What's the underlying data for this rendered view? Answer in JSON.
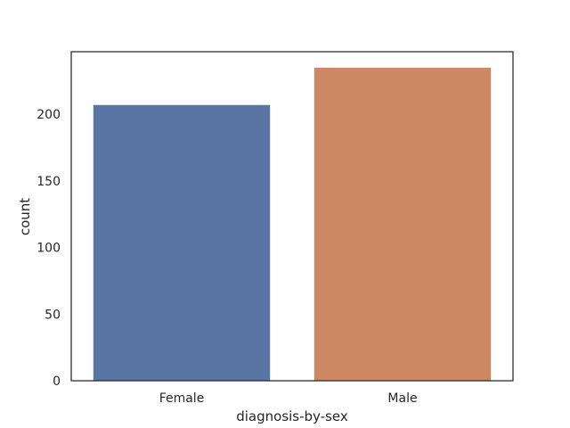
{
  "chart_data": {
    "type": "bar",
    "title": "",
    "xlabel": "diagnosis-by-sex",
    "ylabel": "count",
    "categories": [
      "Female",
      "Male"
    ],
    "values": [
      207,
      235
    ],
    "colors": [
      "#5875a4",
      "#cc8963"
    ],
    "ylim": [
      0,
      247
    ],
    "yticks": [
      0,
      50,
      100,
      150,
      200
    ],
    "grid": false,
    "legend": "none"
  }
}
